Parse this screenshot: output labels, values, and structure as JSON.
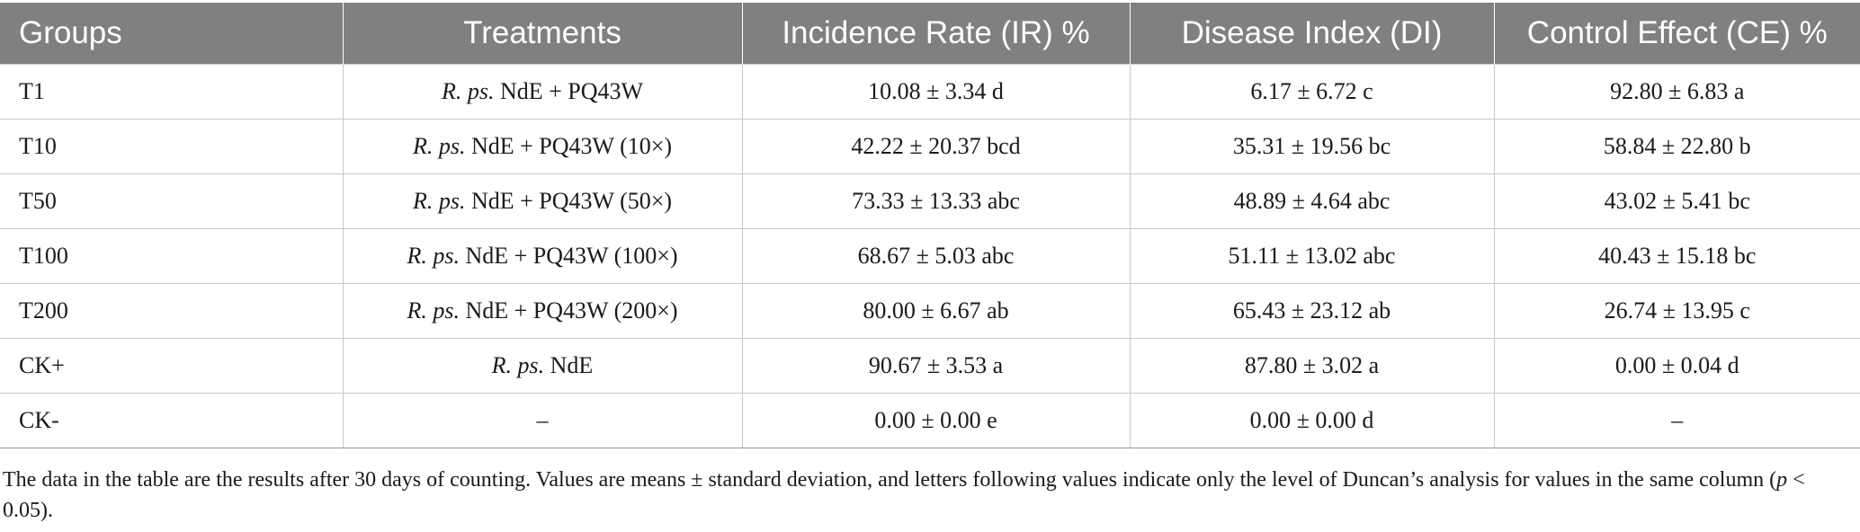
{
  "table": {
    "headers": [
      "Groups",
      "Treatments",
      "Incidence Rate (IR) %",
      "Disease Index (DI)",
      "Control Effect (CE) %"
    ],
    "rows": [
      {
        "group": "T1",
        "treatment_italic": "R. ps.",
        "treatment_rest": " NdE + PQ43W",
        "ir": "10.08 ± 3.34 d",
        "di": "6.17 ± 6.72 c",
        "ce": "92.80 ± 6.83 a"
      },
      {
        "group": "T10",
        "treatment_italic": "R. ps.",
        "treatment_rest": " NdE + PQ43W (10×)",
        "ir": "42.22 ± 20.37 bcd",
        "di": "35.31 ± 19.56 bc",
        "ce": "58.84 ± 22.80 b"
      },
      {
        "group": "T50",
        "treatment_italic": "R. ps.",
        "treatment_rest": " NdE + PQ43W (50×)",
        "ir": "73.33 ± 13.33 abc",
        "di": "48.89 ± 4.64 abc",
        "ce": "43.02 ± 5.41 bc"
      },
      {
        "group": "T100",
        "treatment_italic": "R. ps.",
        "treatment_rest": " NdE + PQ43W (100×)",
        "ir": "68.67 ± 5.03 abc",
        "di": "51.11 ± 13.02 abc",
        "ce": "40.43 ± 15.18 bc"
      },
      {
        "group": "T200",
        "treatment_italic": "R. ps.",
        "treatment_rest": " NdE + PQ43W (200×)",
        "ir": "80.00 ± 6.67 ab",
        "di": "65.43 ± 23.12 ab",
        "ce": "26.74 ± 13.95 c"
      },
      {
        "group": "CK+",
        "treatment_italic": "R. ps.",
        "treatment_rest": " NdE",
        "ir": "90.67 ± 3.53 a",
        "di": "87.80 ± 3.02 a",
        "ce": "0.00 ± 0.04 d"
      },
      {
        "group": "CK-",
        "treatment_italic": "",
        "treatment_rest": "–",
        "ir": "0.00 ± 0.00 e",
        "di": "0.00 ± 0.00 d",
        "ce": "–"
      }
    ]
  },
  "footnote": {
    "part1": "The data in the table are the results after 30 days of counting. Values are means ± standard deviation, and letters following values indicate only the level of Duncan’s analysis for values in the same column (",
    "p_symbol": "p",
    "part2": " < 0.05)."
  }
}
